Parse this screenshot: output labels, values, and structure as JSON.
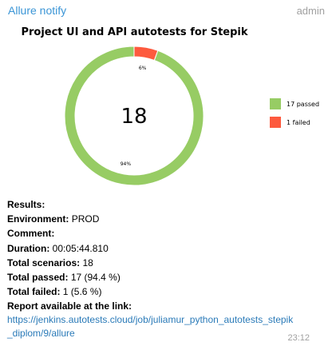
{
  "message": {
    "sender": "Allure notify",
    "role": "admin",
    "time": "23:12"
  },
  "chart_data": {
    "type": "pie",
    "title": "Project UI and API autotests for Stepik",
    "center_label": "18",
    "slices": [
      {
        "name": "17 passed",
        "value": 17,
        "pct_label": "94%",
        "color": "#97cc64"
      },
      {
        "name": "1 failed",
        "value": 1,
        "pct_label": "6%",
        "color": "#fd5a3e"
      }
    ]
  },
  "details": {
    "results": "Results:",
    "environment_label": "Environment:",
    "environment_value": "PROD",
    "comment_label": "Comment:",
    "duration_label": "Duration:",
    "duration_value": "00:05:44.810",
    "scenarios_label": "Total scenarios:",
    "scenarios_value": "18",
    "passed_label": "Total passed:",
    "passed_value": "17 (94.4 %)",
    "failed_label": "Total failed:",
    "failed_value": "1 (5.6 %)",
    "report_label": "Report available at the link:",
    "report_link": "https://jenkins.autotests.cloud/job/juliamur_python_autotests_stepik_diplom/9/allure"
  }
}
